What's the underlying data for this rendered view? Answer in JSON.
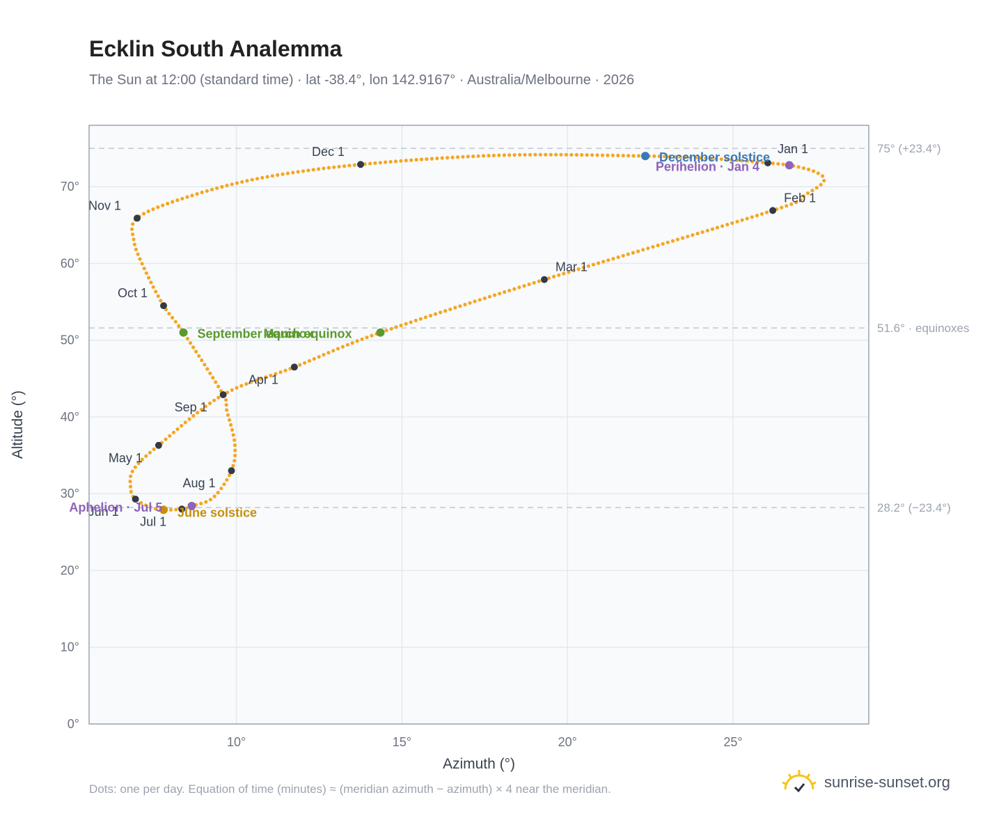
{
  "header": {
    "title": "Ecklin South Analemma",
    "subtitle": "The Sun at 12:00 (standard time) · lat -38.4°, lon 142.9167° · Australia/Melbourne · 2026"
  },
  "footer": {
    "note": "Dots: one per day. Equation of time (minutes) ≈ (meridian azimuth − azimuth) × 4 near the meridian.",
    "brand": "sunrise-sunset.org"
  },
  "colors": {
    "curve": "#f5a623",
    "month_marker": "#333a45",
    "solstice_december": "#3a78b8",
    "solstice_june": "#c8900a",
    "equinox": "#5a9a2e",
    "apsis": "#8e63b8",
    "reference_line": "#c2c8d0",
    "grid": "#e5e9ef",
    "plot_bg": "#f8fafc"
  },
  "chart_data": {
    "type": "scatter",
    "xlabel": "Azimuth (°)",
    "ylabel": "Altitude (°)",
    "xlim": [
      5.55,
      29.1
    ],
    "ylim": [
      0,
      78
    ],
    "x_ticks": [
      10,
      15,
      20,
      25
    ],
    "x_tick_labels": [
      "10°",
      "15°",
      "20°",
      "25°"
    ],
    "y_ticks": [
      0,
      10,
      20,
      30,
      40,
      50,
      60,
      70
    ],
    "y_tick_labels": [
      "0°",
      "10°",
      "20°",
      "30°",
      "40°",
      "50°",
      "60°",
      "70°"
    ],
    "grid": true,
    "reference_lines": [
      {
        "y": 75.0,
        "label": "75° (+23.4°)"
      },
      {
        "y": 51.6,
        "label": "51.6° · equinoxes"
      },
      {
        "y": 28.2,
        "label": "28.2° (−23.4°)"
      }
    ],
    "path_knots": [
      {
        "x": 26.05,
        "y": 73.1
      },
      {
        "x": 26.7,
        "y": 72.8
      },
      {
        "x": 27.45,
        "y": 72.0
      },
      {
        "x": 27.75,
        "y": 70.8
      },
      {
        "x": 27.2,
        "y": 69.0
      },
      {
        "x": 26.2,
        "y": 66.9
      },
      {
        "x": 19.3,
        "y": 57.9
      },
      {
        "x": 14.35,
        "y": 51.0
      },
      {
        "x": 11.75,
        "y": 46.5
      },
      {
        "x": 9.6,
        "y": 42.9
      },
      {
        "x": 7.65,
        "y": 36.3
      },
      {
        "x": 6.9,
        "y": 33.2
      },
      {
        "x": 6.8,
        "y": 31.0
      },
      {
        "x": 6.95,
        "y": 29.3
      },
      {
        "x": 7.6,
        "y": 28.0
      },
      {
        "x": 8.35,
        "y": 28.0
      },
      {
        "x": 8.65,
        "y": 28.4
      },
      {
        "x": 9.3,
        "y": 29.5
      },
      {
        "x": 9.85,
        "y": 33.0
      },
      {
        "x": 9.95,
        "y": 36.5
      },
      {
        "x": 9.7,
        "y": 41.0
      },
      {
        "x": 9.6,
        "y": 42.9
      },
      {
        "x": 8.4,
        "y": 51.0
      },
      {
        "x": 7.8,
        "y": 54.5
      },
      {
        "x": 7.2,
        "y": 59.5
      },
      {
        "x": 6.9,
        "y": 63.0
      },
      {
        "x": 7.0,
        "y": 65.9
      },
      {
        "x": 8.4,
        "y": 68.5
      },
      {
        "x": 10.7,
        "y": 71.1
      },
      {
        "x": 13.75,
        "y": 72.9
      },
      {
        "x": 18.0,
        "y": 74.1
      },
      {
        "x": 22.35,
        "y": 74.0
      },
      {
        "x": 24.6,
        "y": 73.6
      },
      {
        "x": 26.05,
        "y": 73.1
      }
    ],
    "month_markers": [
      {
        "label": "Jan 1",
        "x": 26.05,
        "y": 73.1,
        "dx": 14,
        "dy": -14
      },
      {
        "label": "Feb 1",
        "x": 26.2,
        "y": 66.9,
        "dx": 16,
        "dy": -12
      },
      {
        "label": "Mar 1",
        "x": 19.3,
        "y": 57.9,
        "dx": 16,
        "dy": -12
      },
      {
        "label": "Apr 1",
        "x": 11.75,
        "y": 46.5,
        "dx": -66,
        "dy": 24
      },
      {
        "label": "May 1",
        "x": 7.65,
        "y": 36.3,
        "dx": -72,
        "dy": 24
      },
      {
        "label": "Jun 1",
        "x": 6.95,
        "y": 29.3,
        "dx": -68,
        "dy": 24
      },
      {
        "label": "Jul 1",
        "x": 8.35,
        "y": 28.0,
        "dx": -60,
        "dy": 24
      },
      {
        "label": "Aug 1",
        "x": 9.85,
        "y": 33.0,
        "dx": -70,
        "dy": 24
      },
      {
        "label": "Sep 1",
        "x": 9.6,
        "y": 42.9,
        "dx": -70,
        "dy": 24
      },
      {
        "label": "Oct 1",
        "x": 7.8,
        "y": 54.5,
        "dx": -66,
        "dy": -12
      },
      {
        "label": "Nov 1",
        "x": 7.0,
        "y": 65.9,
        "dx": -70,
        "dy": -12
      },
      {
        "label": "Dec 1",
        "x": 13.75,
        "y": 72.9,
        "dx": -70,
        "dy": -12
      }
    ],
    "events": [
      {
        "label": "December solstice",
        "x": 22.35,
        "y": 74.0,
        "color": "#3a78b8",
        "dx": 20,
        "dy": 8
      },
      {
        "label": "Perihelion · Jan 4",
        "x": 26.7,
        "y": 72.8,
        "color": "#8e63b8",
        "dx": -192,
        "dy": 8
      },
      {
        "label": "March equinox",
        "x": 14.35,
        "y": 51.0,
        "color": "#5a9a2e",
        "dx": -168,
        "dy": 8
      },
      {
        "label": "September equinox",
        "x": 8.4,
        "y": 51.0,
        "color": "#5a9a2e",
        "dx": 20,
        "dy": 8
      },
      {
        "label": "June solstice",
        "x": 7.8,
        "y": 27.9,
        "color": "#c8900a",
        "dx": 20,
        "dy": 10
      },
      {
        "label": "Aphelion · Jul 5",
        "x": 8.65,
        "y": 28.4,
        "color": "#8e63b8",
        "dx": -176,
        "dy": 8
      }
    ]
  }
}
